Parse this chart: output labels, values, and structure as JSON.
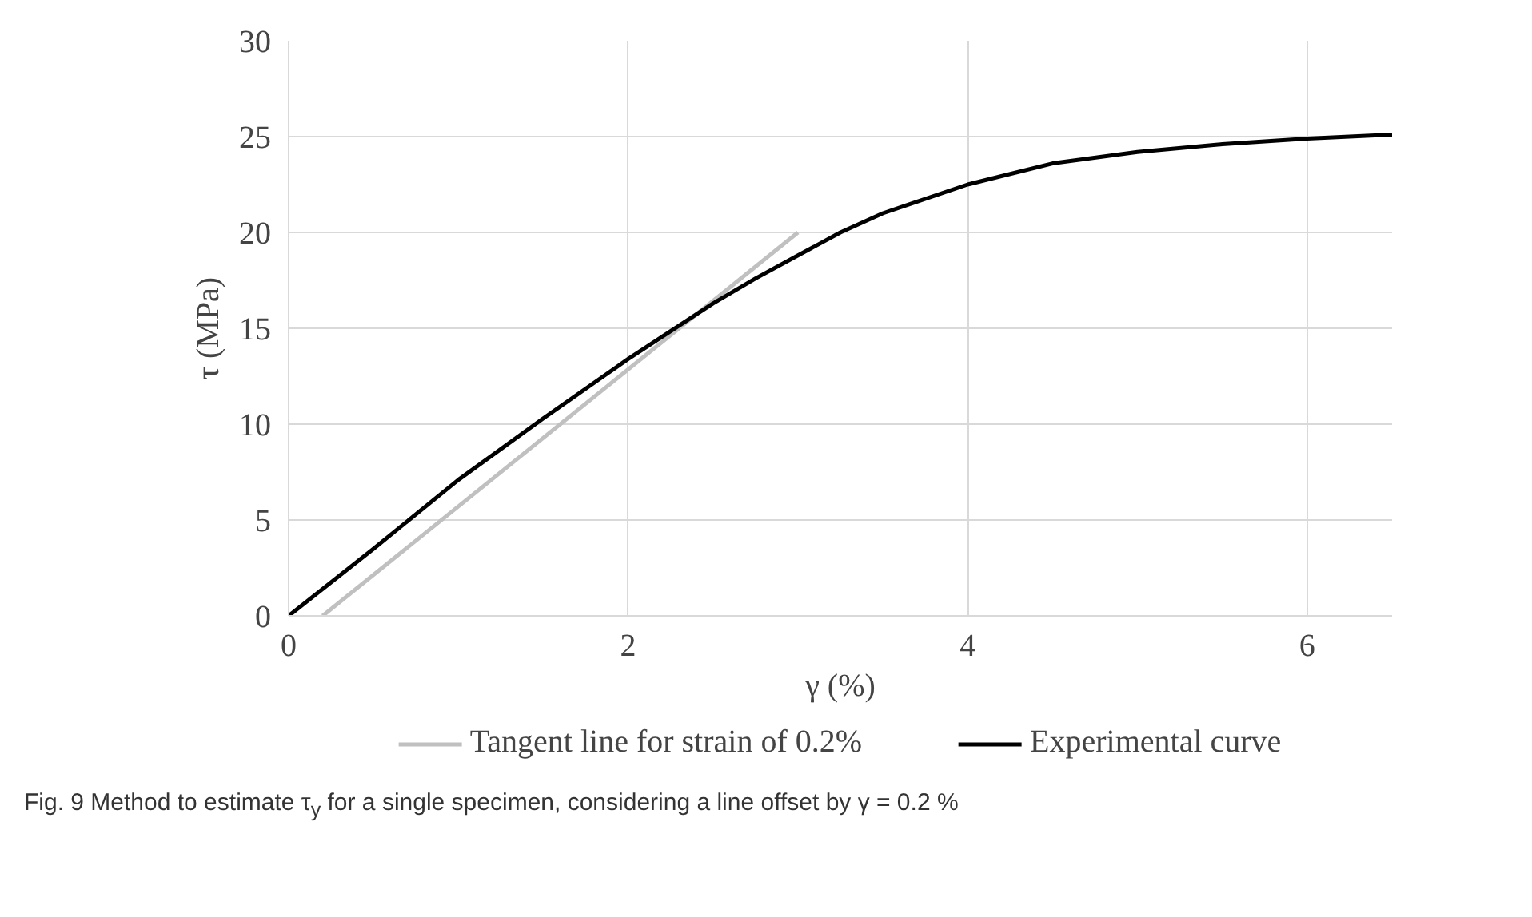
{
  "chart_data": {
    "type": "line",
    "xlabel": "γ (%)",
    "ylabel": "τ (MPa)",
    "xlim": [
      0,
      6.5
    ],
    "ylim": [
      0,
      30
    ],
    "xticks": [
      0,
      2,
      4,
      6
    ],
    "yticks": [
      0,
      5,
      10,
      15,
      20,
      25,
      30
    ],
    "grid": true,
    "legend": "bottom",
    "marker": "none",
    "line_style": "solid",
    "series": [
      {
        "name": "Tangent line for strain of 0.2%",
        "color": "#c0c0c0",
        "x": [
          0.2,
          3.0
        ],
        "values": [
          0,
          20
        ]
      },
      {
        "name": "Experimental curve",
        "color": "#000000",
        "x": [
          0,
          0.5,
          1,
          1.5,
          2,
          2.5,
          2.75,
          3,
          3.25,
          3.5,
          4,
          4.5,
          5,
          5.5,
          6,
          6.5
        ],
        "values": [
          0,
          3.5,
          7.1,
          10.3,
          13.4,
          16.3,
          17.6,
          18.8,
          20.0,
          21.0,
          22.5,
          23.6,
          24.2,
          24.6,
          24.9,
          25.1
        ]
      }
    ],
    "annotations": [
      "Fig. 9 Method to estimate τ$_{y}$ for a single specimen, considering a line offset by γ = 0.2 %"
    ]
  }
}
